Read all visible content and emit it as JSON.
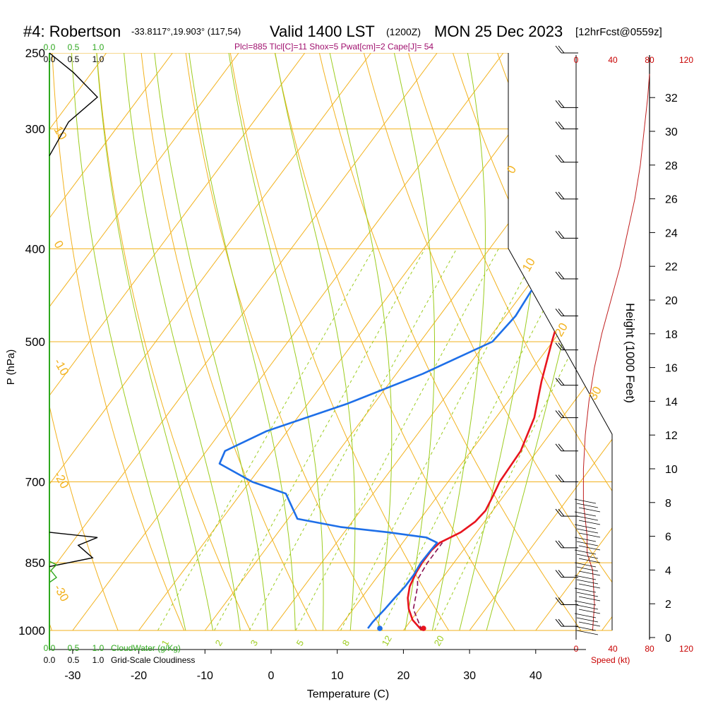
{
  "header": {
    "station": "#4: Robertson",
    "coords": "-33.8117°,19.903° (117,54)",
    "valid": "Valid 1400 LST",
    "utc": "(1200Z)",
    "date": "MON 25 Dec 2023",
    "fcst": "[12hrFcst@0559z]",
    "indices": "Plcl=885 Tlcl[C]=11 Shox=5 Pwat[cm]=2 Cape[J]= 54"
  },
  "labels": {
    "xaxis": "Temperature (C)",
    "yaxis": "P (hPa)",
    "height_axis": "Height (1000 Feet)",
    "speed_axis": "Speed (kt)",
    "cloudwater": "CloudWater (g/Kg)",
    "cloudiness": "Grid-Scale Cloudiness"
  },
  "colors": {
    "isobar": "#f2b21e",
    "isotherm": "#f2b21e",
    "dry_adiabat": "#f2b21e",
    "moist_adiabat": "#9ccc1e",
    "mixing_ratio": "#9ccc1e",
    "temperature": "#e8141e",
    "dewpoint": "#1e6fe8",
    "parcel": "#8a1050",
    "wind_speed": "#c01e1e",
    "header_red": "#c80000",
    "cloud_green": "#2ea81e",
    "indices": "#a0106e"
  },
  "chart_data": {
    "type": "skew-t",
    "x_range": [
      -35,
      45
    ],
    "pressure_range": [
      1000,
      250
    ],
    "temperature_ticks": [
      -30,
      -20,
      -10,
      0,
      10,
      20,
      30,
      40
    ],
    "pressure_ticks": [
      250,
      300,
      400,
      500,
      700,
      850,
      1000
    ],
    "height_ticks": [
      0,
      2,
      4,
      6,
      8,
      10,
      12,
      14,
      16,
      18,
      20,
      22,
      24,
      26,
      28,
      30,
      32
    ],
    "speed_ticks": [
      0,
      40,
      80,
      120
    ],
    "cloud_ticks": [
      "0.0",
      "0.5",
      "1.0"
    ],
    "dry_adiabat_labels": [
      "10",
      "0",
      "-10",
      "-20",
      "-30",
      "0",
      "10",
      "20",
      "30"
    ],
    "mixing_ratio_labels": [
      "1",
      "2",
      "3",
      "5",
      "8",
      "12",
      "20"
    ],
    "temperature": [
      {
        "p": 1000,
        "t": 22.8
      },
      {
        "p": 975,
        "t": 20.2
      },
      {
        "p": 950,
        "t": 18.4
      },
      {
        "p": 925,
        "t": 17.0
      },
      {
        "p": 900,
        "t": 16.0
      },
      {
        "p": 870,
        "t": 15.4
      },
      {
        "p": 850,
        "t": 15.2
      },
      {
        "p": 825,
        "t": 15.2
      },
      {
        "p": 810,
        "t": 15.6
      },
      {
        "p": 790,
        "t": 17.6
      },
      {
        "p": 770,
        "t": 18.6
      },
      {
        "p": 750,
        "t": 18.9
      },
      {
        "p": 725,
        "t": 18.4
      },
      {
        "p": 700,
        "t": 17.8
      },
      {
        "p": 650,
        "t": 17.5
      },
      {
        "p": 600,
        "t": 15.8
      },
      {
        "p": 550,
        "t": 12.8
      },
      {
        "p": 500,
        "t": 9.9
      },
      {
        "p": 450,
        "t": 6.9
      },
      {
        "p": 400,
        "t": 4.4
      },
      {
        "p": 350,
        "t": 2.2
      },
      {
        "p": 320,
        "t": 0.8
      },
      {
        "p": 300,
        "t": -0.7
      },
      {
        "p": 280,
        "t": -1.4
      },
      {
        "p": 260,
        "t": -2.1
      }
    ],
    "dewpoint": [
      {
        "p": 995,
        "t": 14.4
      },
      {
        "p": 980,
        "t": 14.4
      },
      {
        "p": 950,
        "t": 14.8
      },
      {
        "p": 925,
        "t": 15.0
      },
      {
        "p": 900,
        "t": 15.3
      },
      {
        "p": 875,
        "t": 15.3
      },
      {
        "p": 850,
        "t": 15.0
      },
      {
        "p": 825,
        "t": 15.1
      },
      {
        "p": 810,
        "t": 15.2
      },
      {
        "p": 800,
        "t": 13.0
      },
      {
        "p": 790,
        "t": 6.6
      },
      {
        "p": 780,
        "t": -1.2
      },
      {
        "p": 765,
        "t": -8.6
      },
      {
        "p": 720,
        "t": -13.2
      },
      {
        "p": 700,
        "t": -19.6
      },
      {
        "p": 670,
        "t": -26.6
      },
      {
        "p": 650,
        "t": -27.2
      },
      {
        "p": 620,
        "t": -23.2
      },
      {
        "p": 580,
        "t": -14.0
      },
      {
        "p": 540,
        "t": -6.0
      },
      {
        "p": 500,
        "t": 0.9
      },
      {
        "p": 470,
        "t": 1.5
      },
      {
        "p": 440,
        "t": 1.0
      },
      {
        "p": 400,
        "t": -2.0
      },
      {
        "p": 370,
        "t": -3.9
      },
      {
        "p": 330,
        "t": -1.4
      },
      {
        "p": 305,
        "t": -1.8
      },
      {
        "p": 280,
        "t": -3.5
      },
      {
        "p": 260,
        "t": -5.2
      }
    ],
    "surface_dewpoint": {
      "p": 995,
      "t": 16.2
    },
    "surface_temperature": {
      "p": 995,
      "t": 22.8
    },
    "parcel": [
      {
        "p": 1000,
        "t": 22.8
      },
      {
        "p": 950,
        "t": 19.1
      },
      {
        "p": 900,
        "t": 17.2
      },
      {
        "p": 885,
        "t": 16.4
      },
      {
        "p": 850,
        "t": 16.0
      },
      {
        "p": 810,
        "t": 16.0
      }
    ],
    "wind_speed_profile": [
      {
        "h": 0.4,
        "s": 18
      },
      {
        "h": 2,
        "s": 20
      },
      {
        "h": 4,
        "s": 18
      },
      {
        "h": 5,
        "s": 12
      },
      {
        "h": 6,
        "s": 12
      },
      {
        "h": 8,
        "s": 8
      },
      {
        "h": 10,
        "s": 8
      },
      {
        "h": 12,
        "s": 10
      },
      {
        "h": 14,
        "s": 14
      },
      {
        "h": 16,
        "s": 20
      },
      {
        "h": 18,
        "s": 28
      },
      {
        "h": 20,
        "s": 38
      },
      {
        "h": 22,
        "s": 48
      },
      {
        "h": 24,
        "s": 56
      },
      {
        "h": 26,
        "s": 64
      },
      {
        "h": 28,
        "s": 70
      },
      {
        "h": 30,
        "s": 74
      },
      {
        "h": 32,
        "s": 78
      },
      {
        "h": 33.4,
        "s": 80
      }
    ],
    "cloudiness_profile": [
      {
        "p": 250,
        "c": 0.0
      },
      {
        "p": 262,
        "c": 0.5
      },
      {
        "p": 278,
        "c": 1.0
      },
      {
        "p": 295,
        "c": 0.4
      },
      {
        "p": 320,
        "c": 0.0
      },
      {
        "p": 790,
        "c": 0.0
      },
      {
        "p": 800,
        "c": 1.0
      },
      {
        "p": 815,
        "c": 0.6
      },
      {
        "p": 840,
        "c": 0.9
      },
      {
        "p": 858,
        "c": 0.0
      }
    ],
    "wind_barbs": [
      {
        "p": 250,
        "spd": 20
      },
      {
        "p": 285,
        "spd": 20
      },
      {
        "p": 300,
        "spd": 20
      },
      {
        "p": 325,
        "spd": 20
      },
      {
        "p": 355,
        "spd": 20
      },
      {
        "p": 390,
        "spd": 20
      },
      {
        "p": 430,
        "spd": 20
      },
      {
        "p": 470,
        "spd": 20
      },
      {
        "p": 510,
        "spd": 20
      },
      {
        "p": 555,
        "spd": 20
      },
      {
        "p": 600,
        "spd": 20
      },
      {
        "p": 650,
        "spd": 20
      },
      {
        "p": 700,
        "spd": 20
      },
      {
        "p": 760,
        "spd": 20
      },
      {
        "p": 820,
        "spd": 20
      },
      {
        "p": 880,
        "spd": 20
      },
      {
        "p": 940,
        "spd": 20
      },
      {
        "p": 990,
        "spd": 20
      }
    ]
  }
}
